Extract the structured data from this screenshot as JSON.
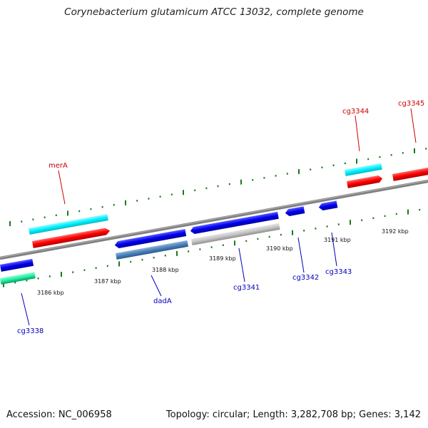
{
  "title": "Corynebacterium glutamicum ATCC 13032, complete genome",
  "footer": {
    "accession": "Accession: NC_006958",
    "summary": "Topology: circular; Length: 3,282,708 bp; Genes: 3,142"
  },
  "colors": {
    "forward_label": "#cc0000",
    "reverse_label": "#0000bb",
    "backbone": "#808080",
    "tick": "#1a7a1a"
  },
  "scale": [
    "3186 kbp",
    "3187 kbp",
    "3188 kbp",
    "3189 kbp",
    "3190 kbp",
    "3191 kbp",
    "3192 kbp"
  ],
  "genes": {
    "forward": [
      "merA",
      "cg3344",
      "cg3345"
    ],
    "reverse": [
      "cg3338",
      "dadA",
      "cg3341",
      "cg3342",
      "cg3343"
    ]
  }
}
